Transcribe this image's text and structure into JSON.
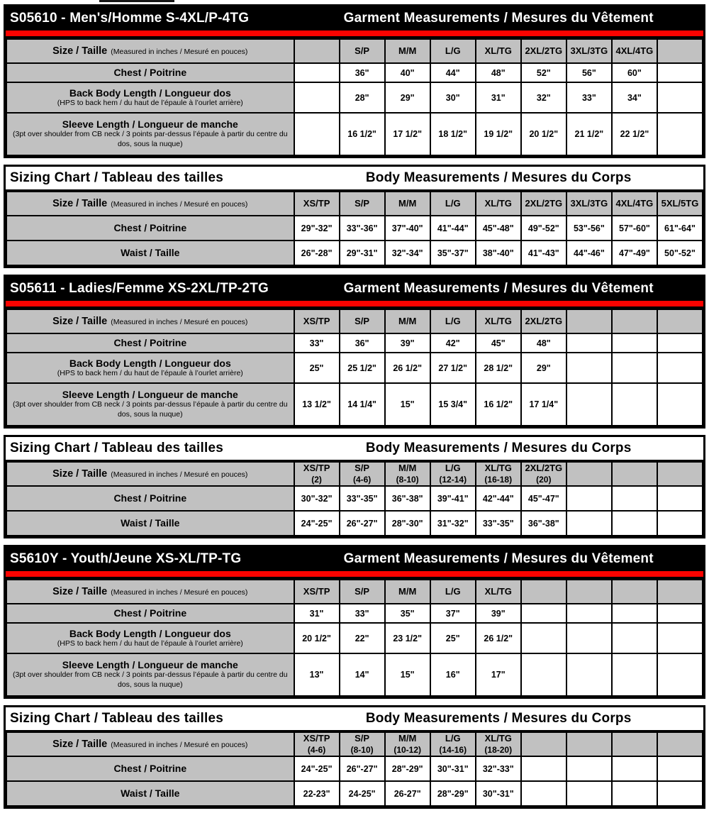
{
  "colors": {
    "title_bar_bg": "#000000",
    "title_bar_text": "#ffffff",
    "red_stripe": "#fb0300",
    "header_cell_bg": "#c1c1c1",
    "data_cell_bg": "#ffffff",
    "border": "#000000"
  },
  "size_row_label": {
    "main": "Size / Taille",
    "note": "(Measured in inches / Mesuré en pouces)"
  },
  "tables": [
    {
      "id": "mens-garment",
      "style": "garment",
      "title_left": "S05610 - Men's/Homme S-4XL/P-4TG",
      "title_right": "Garment Measurements / Mesures du Vêtement",
      "sizes": [
        "",
        "S/P",
        "M/M",
        "L/G",
        "XL/TG",
        "2XL/2TG",
        "3XL/3TG",
        "4XL/4TG",
        ""
      ],
      "rows": [
        {
          "label": "Chest / Poitrine",
          "note": "",
          "values": [
            "",
            "36\"",
            "40\"",
            "44\"",
            "48\"",
            "52\"",
            "56\"",
            "60\"",
            ""
          ]
        },
        {
          "label": "Back Body Length / Longueur dos",
          "note": "(HPS to back hem  / du haut de l’épaule à l’ourlet arrière)",
          "values": [
            "",
            "28\"",
            "29\"",
            "30\"",
            "31\"",
            "32\"",
            "33\"",
            "34\"",
            ""
          ]
        },
        {
          "label": "Sleeve Length / Longueur de manche",
          "note": "(3pt over shoulder from CB neck / 3 points par-dessus l’épaule à partir du centre du dos, sous la nuque)",
          "values": [
            "",
            "16 1/2\"",
            "17 1/2\"",
            "18 1/2\"",
            "19 1/2\"",
            "20 1/2\"",
            "21 1/2\"",
            "22 1/2\"",
            ""
          ]
        }
      ]
    },
    {
      "id": "mens-body",
      "style": "body",
      "title_left": "Sizing Chart / Tableau des tailles",
      "title_right": "Body Measurements / Mesures du Corps",
      "sizes": [
        "XS/TP",
        "S/P",
        "M/M",
        "L/G",
        "XL/TG",
        "2XL/2TG",
        "3XL/3TG",
        "4XL/4TG",
        "5XL/5TG"
      ],
      "rows": [
        {
          "label": "Chest / Poitrine",
          "note": "",
          "values": [
            "29\"-32\"",
            "33\"-36\"",
            "37\"-40\"",
            "41\"-44\"",
            "45\"-48\"",
            "49\"-52\"",
            "53\"-56\"",
            "57\"-60\"",
            "61\"-64\""
          ]
        },
        {
          "label": "Waist / Taille",
          "note": "",
          "values": [
            "26\"-28\"",
            "29\"-31\"",
            "32\"-34\"",
            "35\"-37\"",
            "38\"-40\"",
            "41\"-43\"",
            "44\"-46\"",
            "47\"-49\"",
            "50\"-52\""
          ]
        }
      ]
    },
    {
      "id": "ladies-garment",
      "style": "garment",
      "title_left": "S05611 - Ladies/Femme XS-2XL/TP-2TG",
      "title_right": "Garment Measurements / Mesures du Vêtement",
      "sizes": [
        "XS/TP",
        "S/P",
        "M/M",
        "L/G",
        "XL/TG",
        "2XL/2TG",
        "",
        "",
        ""
      ],
      "rows": [
        {
          "label": "Chest / Poitrine",
          "note": "",
          "values": [
            "33\"",
            "36\"",
            "39\"",
            "42\"",
            "45\"",
            "48\"",
            "",
            "",
            ""
          ]
        },
        {
          "label": "Back Body Length / Longueur dos",
          "note": "(HPS to back hem  / du haut de l’épaule à l’ourlet arrière)",
          "values": [
            "25\"",
            "25 1/2\"",
            "26 1/2\"",
            "27 1/2\"",
            "28 1/2\"",
            "29\"",
            "",
            "",
            ""
          ]
        },
        {
          "label": "Sleeve Length / Longueur de manche",
          "note": "(3pt over shoulder from CB neck / 3 points par-dessus l’épaule à partir du centre du dos, sous la nuque)",
          "values": [
            "13 1/2\"",
            "14 1/4\"",
            "15\"",
            "15 3/4\"",
            "16 1/2\"",
            "17 1/4\"",
            "",
            "",
            ""
          ]
        }
      ]
    },
    {
      "id": "ladies-body",
      "style": "body",
      "title_left": "Sizing Chart / Tableau des tailles",
      "title_right": "Body Measurements / Mesures du Corps",
      "sizes": [
        {
          "label": "XS/TP",
          "sub": "(2)"
        },
        {
          "label": "S/P",
          "sub": "(4-6)"
        },
        {
          "label": "M/M",
          "sub": "(8-10)"
        },
        {
          "label": "L/G",
          "sub": "(12-14)"
        },
        {
          "label": "XL/TG",
          "sub": "(16-18)"
        },
        {
          "label": "2XL/2TG",
          "sub": "(20)"
        },
        "",
        "",
        ""
      ],
      "rows": [
        {
          "label": "Chest / Poitrine",
          "note": "",
          "values": [
            "30\"-32\"",
            "33\"-35\"",
            "36\"-38\"",
            "39\"-41\"",
            "42\"-44\"",
            "45\"-47\"",
            "",
            "",
            ""
          ]
        },
        {
          "label": "Waist / Taille",
          "note": "",
          "values": [
            "24\"-25\"",
            "26\"-27\"",
            "28\"-30\"",
            "31\"-32\"",
            "33\"-35\"",
            "36\"-38\"",
            "",
            "",
            ""
          ]
        }
      ]
    },
    {
      "id": "youth-garment",
      "style": "garment",
      "title_left": "S5610Y - Youth/Jeune XS-XL/TP-TG",
      "title_right": "Garment Measurements / Mesures du Vêtement",
      "sizes": [
        "XS/TP",
        "S/P",
        "M/M",
        "L/G",
        "XL/TG",
        "",
        "",
        "",
        ""
      ],
      "rows": [
        {
          "label": "Chest / Poitrine",
          "note": "",
          "values": [
            "31\"",
            "33\"",
            "35\"",
            "37\"",
            "39\"",
            "",
            "",
            "",
            ""
          ]
        },
        {
          "label": "Back Body Length / Longueur dos",
          "note": "(HPS to back hem  / du haut de l’épaule à l’ourlet arrière)",
          "values": [
            "20 1/2\"",
            "22\"",
            "23 1/2\"",
            "25\"",
            "26 1/2\"",
            "",
            "",
            "",
            ""
          ]
        },
        {
          "label": "Sleeve Length / Longueur de manche",
          "note": "(3pt over shoulder from CB neck / 3 points par-dessus l’épaule à partir du centre du dos, sous la nuque)",
          "values": [
            "13\"",
            "14\"",
            "15\"",
            "16\"",
            "17\"",
            "",
            "",
            "",
            ""
          ]
        }
      ]
    },
    {
      "id": "youth-body",
      "style": "body",
      "title_left": "Sizing Chart / Tableau des tailles",
      "title_right": "Body Measurements / Mesures du Corps",
      "sizes": [
        {
          "label": "XS/TP",
          "sub": "(4-6)"
        },
        {
          "label": "S/P",
          "sub": "(8-10)"
        },
        {
          "label": "M/M",
          "sub": "(10-12)"
        },
        {
          "label": "L/G",
          "sub": "(14-16)"
        },
        {
          "label": "XL/TG",
          "sub": "(18-20)"
        },
        "",
        "",
        "",
        ""
      ],
      "rows": [
        {
          "label": "Chest / Poitrine",
          "note": "",
          "values": [
            "24\"-25\"",
            "26\"-27\"",
            "28\"-29\"",
            "30\"-31\"",
            "32\"-33\"",
            "",
            "",
            "",
            ""
          ]
        },
        {
          "label": "Waist / Taille",
          "note": "",
          "values": [
            "22-23\"",
            "24-25\"",
            "26-27\"",
            "28\"-29\"",
            "30\"-31\"",
            "",
            "",
            "",
            ""
          ]
        }
      ]
    }
  ]
}
